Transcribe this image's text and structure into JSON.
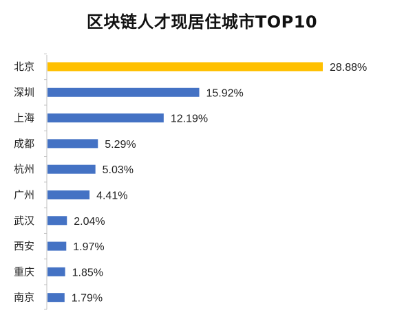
{
  "chart_data": {
    "type": "bar",
    "orientation": "horizontal",
    "title": "区块链人才现居住城市TOP10",
    "xlabel": "",
    "ylabel": "",
    "categories": [
      "北京",
      "深圳",
      "上海",
      "成都",
      "杭州",
      "广州",
      "武汉",
      "西安",
      "重庆",
      "南京"
    ],
    "values": [
      28.88,
      15.92,
      12.19,
      5.29,
      5.03,
      4.41,
      2.04,
      1.97,
      1.85,
      1.79
    ],
    "value_labels": [
      "28.88%",
      "15.92%",
      "12.19%",
      "5.29%",
      "5.03%",
      "4.41%",
      "2.04%",
      "1.97%",
      "1.85%",
      "1.79%"
    ],
    "unit": "%",
    "xlim": [
      0,
      28.88
    ],
    "grid": false,
    "legend": "none",
    "colors": {
      "highlight": "#FFC000",
      "default": "#4472C4",
      "axis": "#BFBFBF",
      "text": "#222222"
    },
    "highlight_index": 0
  }
}
